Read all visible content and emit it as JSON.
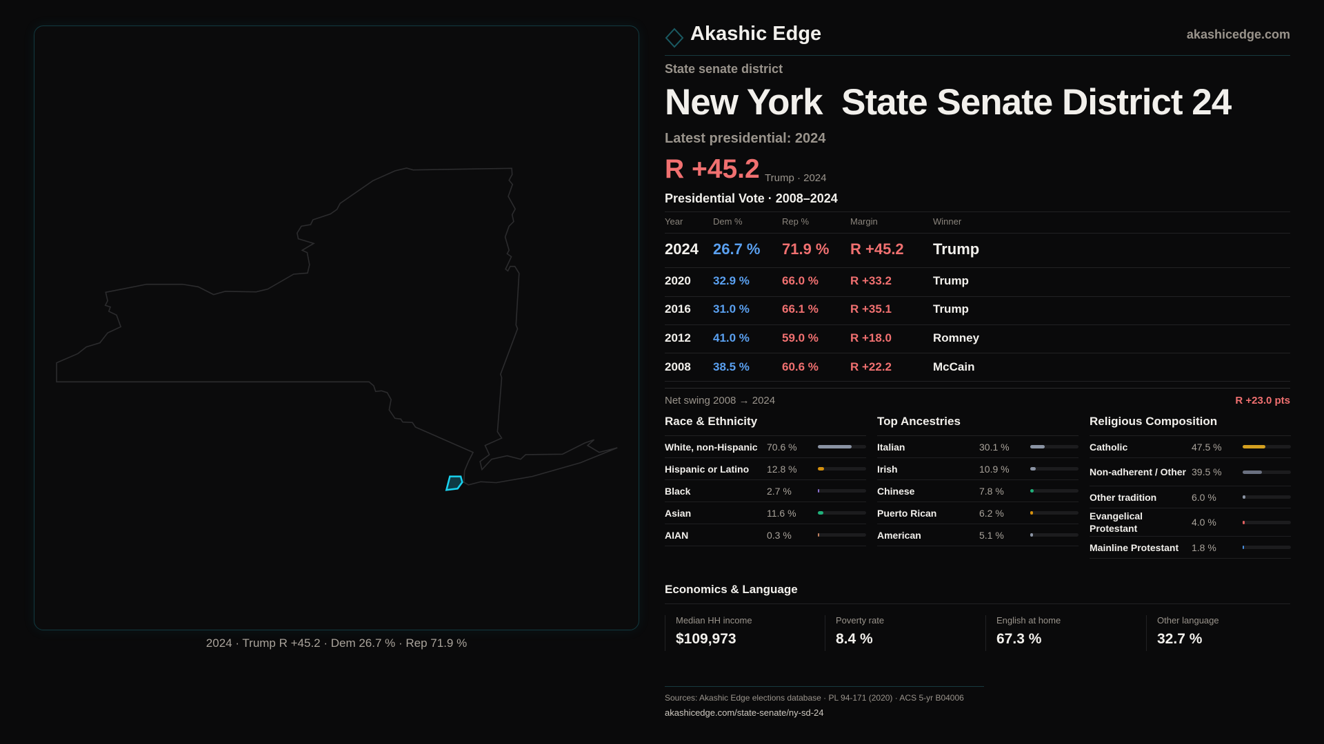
{
  "map": {
    "caption": "2024 · Trump R +45.2 · Dem 26.7 % · Rep 71.9 %",
    "highlight_color": "#19d3f0"
  },
  "header": {
    "brand": "Akashic Edge",
    "site": "akashicedge.com",
    "logo_icon": "diamond-icon"
  },
  "district": {
    "type": "State senate district",
    "state": "New York",
    "name": "State Senate District 24",
    "latest": "Latest presidential: 2024",
    "margin": "R +45.2",
    "margin_note": "Trump · 2024"
  },
  "table": {
    "title": "Presidential Vote · 2008–2024",
    "headers": [
      "Year",
      "Dem %",
      "Rep %",
      "Margin",
      "Winner"
    ],
    "rows": [
      {
        "year": "2024",
        "dem": "26.7 %",
        "rep": "71.9 %",
        "margin": "R +45.2",
        "winner": "Trump"
      },
      {
        "year": "2020",
        "dem": "32.9 %",
        "rep": "66.0 %",
        "margin": "R +33.2",
        "winner": "Trump"
      },
      {
        "year": "2016",
        "dem": "31.0 %",
        "rep": "66.1 %",
        "margin": "R +35.1",
        "winner": "Trump"
      },
      {
        "year": "2012",
        "dem": "41.0 %",
        "rep": "59.0 %",
        "margin": "R +18.0",
        "winner": "Romney"
      },
      {
        "year": "2008",
        "dem": "38.5 %",
        "rep": "60.6 %",
        "margin": "R +22.2",
        "winner": "McCain"
      }
    ],
    "swing_label": "Net swing 2008 → 2024",
    "swing_value": "R +23.0 pts"
  },
  "demographics": [
    {
      "title": "Race & Ethnicity",
      "items": [
        {
          "label": "White, non-Hispanic",
          "value": "70.6 %",
          "pct": 70.6,
          "color": "#8a93a3"
        },
        {
          "label": "Hispanic or Latino",
          "value": "12.8 %",
          "pct": 12.8,
          "color": "#d4900e"
        },
        {
          "label": "Black",
          "value": "2.7 %",
          "pct": 2.7,
          "color": "#8a6fd0"
        },
        {
          "label": "Asian",
          "value": "11.6 %",
          "pct": 11.6,
          "color": "#20b07a"
        },
        {
          "label": "AIAN",
          "value": "0.3 %",
          "pct": 0.3,
          "color": "#c08060"
        }
      ]
    },
    {
      "title": "Top Ancestries",
      "items": [
        {
          "label": "Italian",
          "value": "30.1 %",
          "pct": 30.1,
          "color": "#8a93a3"
        },
        {
          "label": "Irish",
          "value": "10.9 %",
          "pct": 10.9,
          "color": "#8a93a3"
        },
        {
          "label": "Chinese",
          "value": "7.8 %",
          "pct": 7.8,
          "color": "#20b07a"
        },
        {
          "label": "Puerto Rican",
          "value": "6.2 %",
          "pct": 6.2,
          "color": "#d4900e"
        },
        {
          "label": "American",
          "value": "5.1 %",
          "pct": 5.1,
          "color": "#8a93a3"
        }
      ]
    },
    {
      "title": "Religious Composition",
      "items": [
        {
          "label": "Catholic",
          "value": "47.5 %",
          "pct": 47.5,
          "color": "#d4a020"
        },
        {
          "label": "Non-adherent / Other",
          "value": "39.5 %",
          "pct": 39.5,
          "color": "#6a7080"
        },
        {
          "label": "Other tradition",
          "value": "6.0 %",
          "pct": 6.0,
          "color": "#8a93a3"
        },
        {
          "label": "Evangelical Protestant",
          "value": "4.0 %",
          "pct": 4.0,
          "color": "#e06060"
        },
        {
          "label": "Mainline Protestant",
          "value": "1.8 %",
          "pct": 1.8,
          "color": "#4a90e0"
        }
      ]
    }
  ],
  "economics": {
    "title": "Economics & Language",
    "cards": [
      {
        "label": "Median HH income",
        "value": "$109,973"
      },
      {
        "label": "Poverty rate",
        "value": "8.4 %"
      },
      {
        "label": "English at home",
        "value": "67.3 %"
      },
      {
        "label": "Other language",
        "value": "32.7 %"
      }
    ]
  },
  "footer": {
    "sources": "Sources: Akashic Edge elections database · PL 94-171 (2020) · ACS 5-yr B04006",
    "url": "akashicedge.com/state-senate/ny-sd-24"
  },
  "colors": {
    "rep": "#f07070",
    "dem": "#5aa0f0",
    "accent": "#19d3f0",
    "background": "#0a0a0b"
  }
}
